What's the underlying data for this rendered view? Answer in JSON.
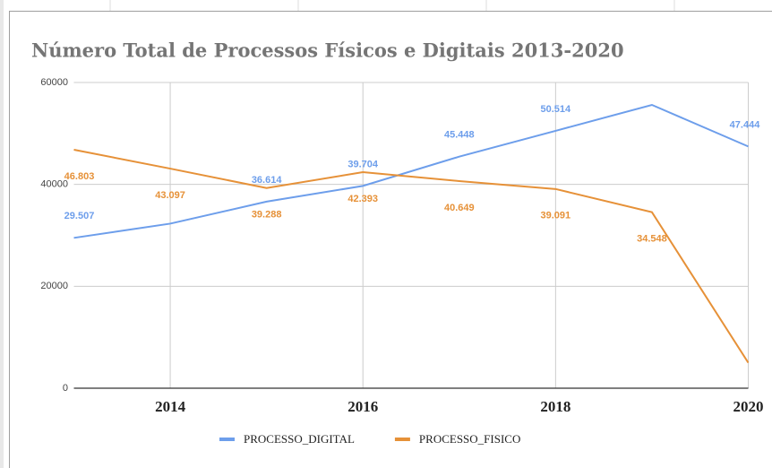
{
  "chart_data": {
    "type": "line",
    "title": "Número Total de Processos Físicos e Digitais 2013-2020",
    "x": [
      2013,
      2014,
      2015,
      2016,
      2017,
      2018,
      2019,
      2020
    ],
    "xlim": [
      2013,
      2020
    ],
    "xticks": [
      2014,
      2016,
      2018,
      2020
    ],
    "ylim": [
      0,
      60000
    ],
    "yticks": [
      0,
      20000,
      40000,
      60000
    ],
    "grid": true,
    "legend": "bottom",
    "series": [
      {
        "name": "PROCESSO_DIGITAL",
        "color": "#6d9eeb",
        "values": [
          29507,
          32300,
          36614,
          39704,
          45448,
          50514,
          55600,
          47444
        ],
        "value_labels": [
          "29.507",
          null,
          "36.614",
          "39.704",
          "45.448",
          "50.514",
          null,
          "47.444"
        ]
      },
      {
        "name": "PROCESSO_FISICO",
        "color": "#e69138",
        "values": [
          46803,
          43097,
          39288,
          42393,
          40649,
          39091,
          34548,
          5000
        ],
        "value_labels": [
          "46.803",
          "43.097",
          "39.288",
          "42.393",
          "40.649",
          "39.091",
          "34.548",
          null
        ]
      }
    ]
  }
}
